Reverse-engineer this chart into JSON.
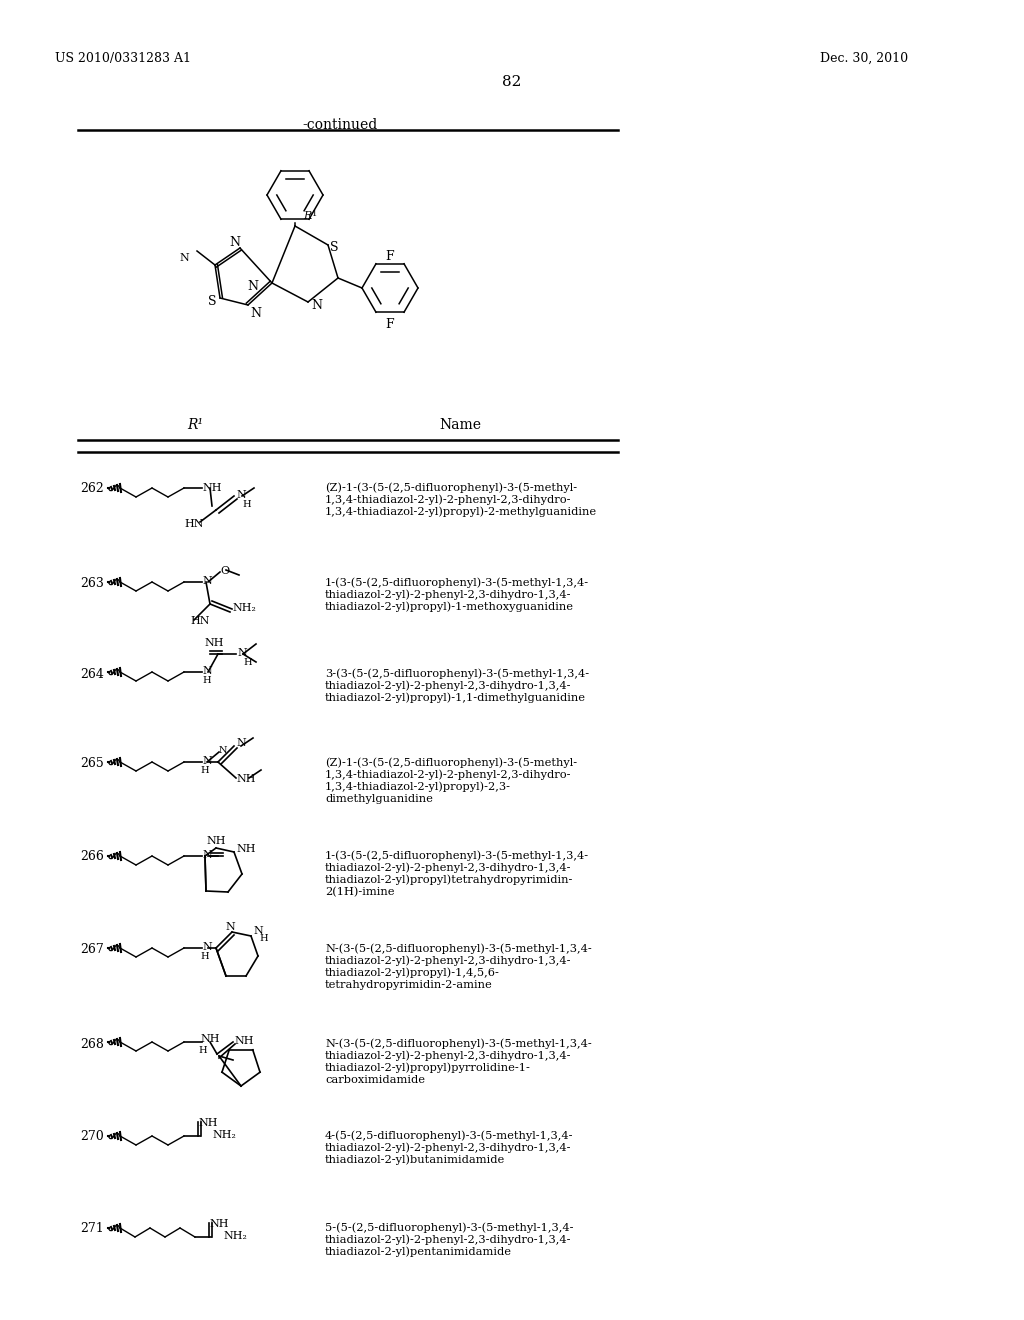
{
  "patent_number": "US 2010/0331283 A1",
  "patent_date": "Dec. 30, 2010",
  "page_number": "82",
  "continued": "-continued",
  "col1_header": "R¹",
  "col2_header": "Name",
  "rows": [
    {
      "id": "262",
      "name": "(Z)-1-(3-(5-(2,5-difluorophenyl)-3-(5-methyl-\n1,3,4-thiadiazol-2-yl)-2-phenyl-2,3-dihydro-\n1,3,4-thiadiazol-2-yl)propyl)-2-methylguanidine"
    },
    {
      "id": "263",
      "name": "1-(3-(5-(2,5-difluorophenyl)-3-(5-methyl-1,3,4-\nthiadiazol-2-yl)-2-phenyl-2,3-dihydro-1,3,4-\nthiadiazol-2-yl)propyl)-1-methoxyguanidine"
    },
    {
      "id": "264",
      "name": "3-(3-(5-(2,5-difluorophenyl)-3-(5-methyl-1,3,4-\nthiadiazol-2-yl)-2-phenyl-2,3-dihydro-1,3,4-\nthiadiazol-2-yl)propyl)-1,1-dimethylguanidine"
    },
    {
      "id": "265",
      "name": "(Z)-1-(3-(5-(2,5-difluorophenyl)-3-(5-methyl-\n1,3,4-thiadiazol-2-yl)-2-phenyl-2,3-dihydro-\n1,3,4-thiadiazol-2-yl)propyl)-2,3-\ndimethylguanidine"
    },
    {
      "id": "266",
      "name": "1-(3-(5-(2,5-difluorophenyl)-3-(5-methyl-1,3,4-\nthiadiazol-2-yl)-2-phenyl-2,3-dihydro-1,3,4-\nthiadiazol-2-yl)propyl)tetrahydropyrimidin-\n2(1H)-imine"
    },
    {
      "id": "267",
      "name": "N-(3-(5-(2,5-difluorophenyl)-3-(5-methyl-1,3,4-\nthiadiazol-2-yl)-2-phenyl-2,3-dihydro-1,3,4-\nthiadiazol-2-yl)propyl)-1,4,5,6-\ntetrahydropyrimidin-2-amine"
    },
    {
      "id": "268",
      "name": "N-(3-(5-(2,5-difluorophenyl)-3-(5-methyl-1,3,4-\nthiadiazol-2-yl)-2-phenyl-2,3-dihydro-1,3,4-\nthiadiazol-2-yl)propyl)pyrrolidine-1-\ncarboximidamide"
    },
    {
      "id": "270",
      "name": "4-(5-(2,5-difluorophenyl)-3-(5-methyl-1,3,4-\nthiadiazol-2-yl)-2-phenyl-2,3-dihydro-1,3,4-\nthiadiazol-2-yl)butanimidamide"
    },
    {
      "id": "271",
      "name": "5-(5-(2,5-difluorophenyl)-3-(5-methyl-1,3,4-\nthiadiazol-2-yl)-2-phenyl-2,3-dihydro-1,3,4-\nthiadiazol-2-yl)pentanimidamide"
    }
  ],
  "bg_color": "#ffffff",
  "text_color": "#000000"
}
